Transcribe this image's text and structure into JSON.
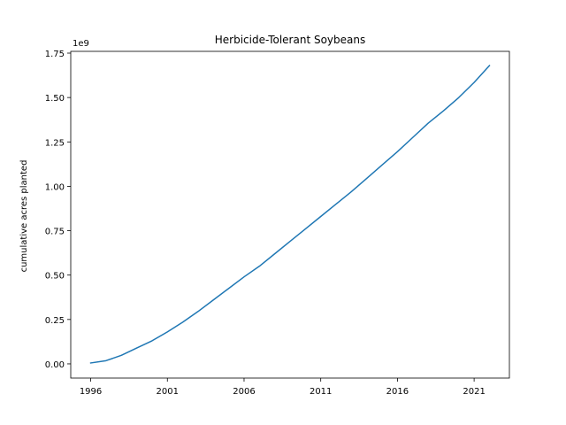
{
  "chart_data": {
    "type": "line",
    "title": "Herbicide-Tolerant Soybeans",
    "xlabel": "",
    "ylabel": "cumulative acres planted",
    "y_offset_label": "1e9",
    "x": [
      1996,
      1997,
      1998,
      1999,
      2000,
      2001,
      2002,
      2003,
      2004,
      2005,
      2006,
      2007,
      2008,
      2009,
      2010,
      2011,
      2012,
      2013,
      2014,
      2015,
      2016,
      2017,
      2018,
      2019,
      2020,
      2021,
      2022
    ],
    "series": [
      {
        "name": "",
        "color": "#1f77b4",
        "values": [
          5000000,
          18000000,
          48000000,
          89000000,
          130000000,
          180000000,
          235000000,
          295000000,
          360000000,
          425000000,
          490000000,
          550000000,
          620000000,
          690000000,
          760000000,
          830000000,
          900000000,
          970000000,
          1045000000,
          1120000000,
          1195000000,
          1275000000,
          1355000000,
          1425000000,
          1500000000,
          1585000000,
          1680000000
        ]
      }
    ],
    "xlim": [
      1994.7,
      2023.3
    ],
    "ylim": [
      -80000000,
      1760000000
    ],
    "x_ticks": [
      1996,
      2001,
      2006,
      2011,
      2016,
      2021
    ],
    "y_ticks": [
      0,
      250000000,
      500000000,
      750000000,
      1000000000,
      1250000000,
      1500000000,
      1750000000
    ],
    "y_tick_labels": [
      "0.00",
      "0.25",
      "0.50",
      "0.75",
      "1.00",
      "1.25",
      "1.50",
      "1.75"
    ],
    "grid": false,
    "legend": "none"
  }
}
